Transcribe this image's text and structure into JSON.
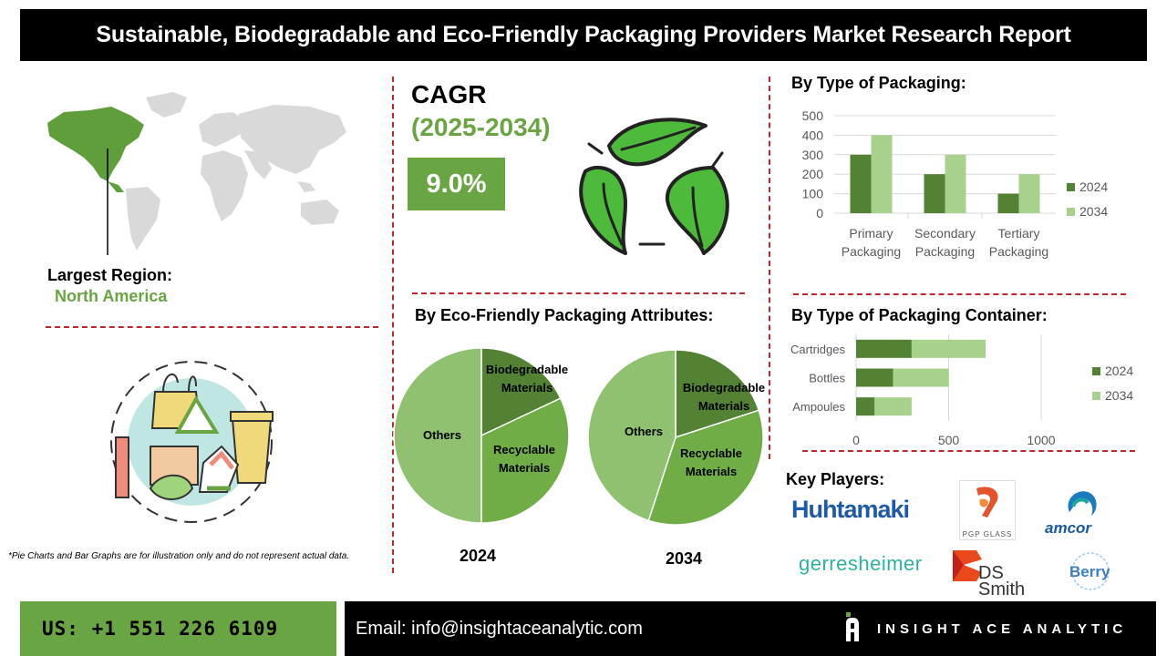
{
  "header": {
    "title": "Sustainable, Biodegradable and Eco-Friendly Packaging Providers Market Research Report"
  },
  "region": {
    "label": "Largest Region:",
    "value": "North America"
  },
  "cagr": {
    "label": "CAGR",
    "years": "(2025-2034)",
    "value": "9.0%"
  },
  "disclaimer": "*Pie Charts and Bar Graphs are for illustration only and do not represent actual data.",
  "sections": {
    "packaging_type": "By Type of Packaging:",
    "attributes": "By Eco-Friendly Packaging Attributes:",
    "container": "By Type of Packaging Container:",
    "key_players": "Key Players:"
  },
  "colors": {
    "green": "#6aa544",
    "dark_green": "#548235",
    "light_green": "#a9d18e",
    "pie_dark": "#548235",
    "pie_mid": "#70ad47",
    "pie_light": "#8fc170",
    "red_dash": "#c0262d"
  },
  "chart_data": [
    {
      "type": "bar",
      "title": "By Type of Packaging:",
      "categories": [
        "Primary Packaging",
        "Secondary Packaging",
        "Tertiary Packaging"
      ],
      "category_lines": [
        [
          "Primary",
          "Packaging"
        ],
        [
          "Secondary",
          "Packaging"
        ],
        [
          "Tertiary",
          "Packaging"
        ]
      ],
      "series": [
        {
          "name": "2024",
          "values": [
            300,
            200,
            100
          ]
        },
        {
          "name": "2034",
          "values": [
            400,
            300,
            200
          ]
        }
      ],
      "ylim": [
        0,
        500
      ],
      "yticks": [
        0,
        100,
        200,
        300,
        400,
        500
      ],
      "legend": "right",
      "grid": true
    },
    {
      "type": "bar",
      "orientation": "horizontal",
      "stacked": true,
      "title": "By Type of Packaging Container:",
      "categories": [
        "Cartridges",
        "Bottles",
        "Ampoules"
      ],
      "series": [
        {
          "name": "2024",
          "values": [
            300,
            200,
            100
          ]
        },
        {
          "name": "2034",
          "values": [
            400,
            300,
            200
          ]
        }
      ],
      "xlim": [
        0,
        1000
      ],
      "xticks": [
        0,
        500,
        1000
      ],
      "legend": "right",
      "grid": true
    },
    {
      "type": "pie",
      "title": "2024",
      "labels": [
        "Biodegradable Materials",
        "Recyclable Materials",
        "Others"
      ],
      "values": [
        18,
        32,
        50
      ]
    },
    {
      "type": "pie",
      "title": "2034",
      "labels": [
        "Biodegradable Materials",
        "Recyclable Materials",
        "Others"
      ],
      "values": [
        20,
        35,
        45
      ]
    }
  ],
  "players": [
    "Huhtamaki",
    "PGP GLASS",
    "amcor",
    "gerresheimer",
    "DS Smith",
    "Berry"
  ],
  "footer": {
    "phone": "US: +1 551 226 6109",
    "email": "Email: info@insightaceanalytic.com",
    "brand": "INSIGHT ACE ANALYTIC"
  }
}
